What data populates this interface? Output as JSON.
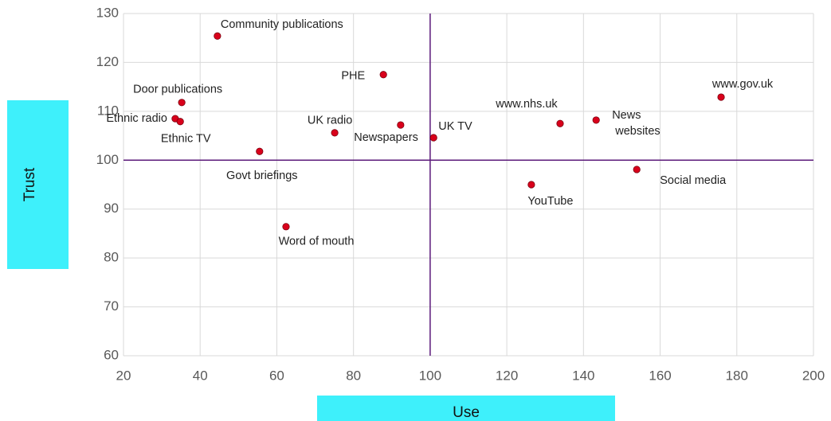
{
  "chart_data": {
    "type": "scatter",
    "x_label": "Use",
    "y_label": "Trust",
    "labels": [
      "Community publications",
      "PHE",
      "Door publications",
      "Ethnic radio",
      "Ethnic TV",
      "UK radio",
      "Newspapers",
      "UK TV",
      "Govt briefings",
      "Word of mouth",
      "YouTube",
      "www.nhs.uk",
      "News websites",
      "Social media",
      "www.gov.uk"
    ],
    "x": [
      44.5,
      87.8,
      35.2,
      33.5,
      34.8,
      75.1,
      92.3,
      100.9,
      55.5,
      62.4,
      126.4,
      133.9,
      143.3,
      153.9,
      175.9
    ],
    "y": [
      125.4,
      117.5,
      111.8,
      108.5,
      107.9,
      105.6,
      107.2,
      104.6,
      101.8,
      86.4,
      95,
      107.5,
      108.2,
      98.1,
      112.9
    ],
    "color": "#d9001b",
    "xlim": [
      20,
      200
    ],
    "xticks": [
      20,
      40,
      60,
      80,
      100,
      120,
      140,
      160,
      180,
      200
    ],
    "ylim": [
      60,
      130
    ],
    "yticks": [
      60,
      70,
      80,
      90,
      100,
      110,
      120,
      130
    ],
    "grid": true,
    "reference_lines": {
      "x": 100,
      "y": 100,
      "color": "#5b1a7a"
    }
  }
}
